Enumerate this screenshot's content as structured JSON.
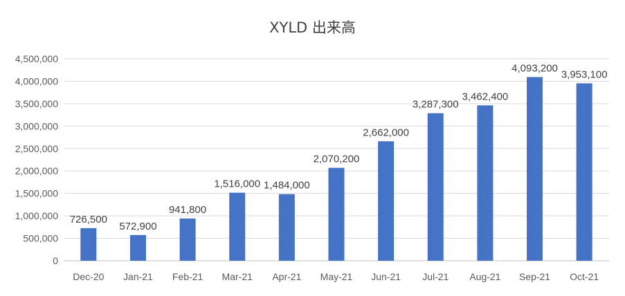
{
  "chart_data": {
    "type": "bar",
    "title": "XYLD 出来高",
    "categories": [
      "Dec-20",
      "Jan-21",
      "Feb-21",
      "Mar-21",
      "Apr-21",
      "May-21",
      "Jun-21",
      "Jul-21",
      "Aug-21",
      "Sep-21",
      "Oct-21"
    ],
    "values": [
      726500,
      572900,
      941800,
      1516000,
      1484000,
      2070200,
      2662000,
      3287300,
      3462400,
      4093200,
      3953100
    ],
    "data_labels": [
      "726,500",
      "572,900",
      "941,800",
      "1,516,000",
      "1,484,000",
      "2,070,200",
      "2,662,000",
      "3,287,300",
      "3,462,400",
      "4,093,200",
      "3,953,100"
    ],
    "yticks": [
      "0",
      "500,000",
      "1,000,000",
      "1,500,000",
      "2,000,000",
      "2,500,000",
      "3,000,000",
      "3,500,000",
      "4,000,000",
      "4,500,000"
    ],
    "ylim": [
      0,
      4500000
    ],
    "grid": true,
    "legend": "none",
    "bar_color": "#4472C4",
    "grid_color": "#D9D9D9"
  }
}
